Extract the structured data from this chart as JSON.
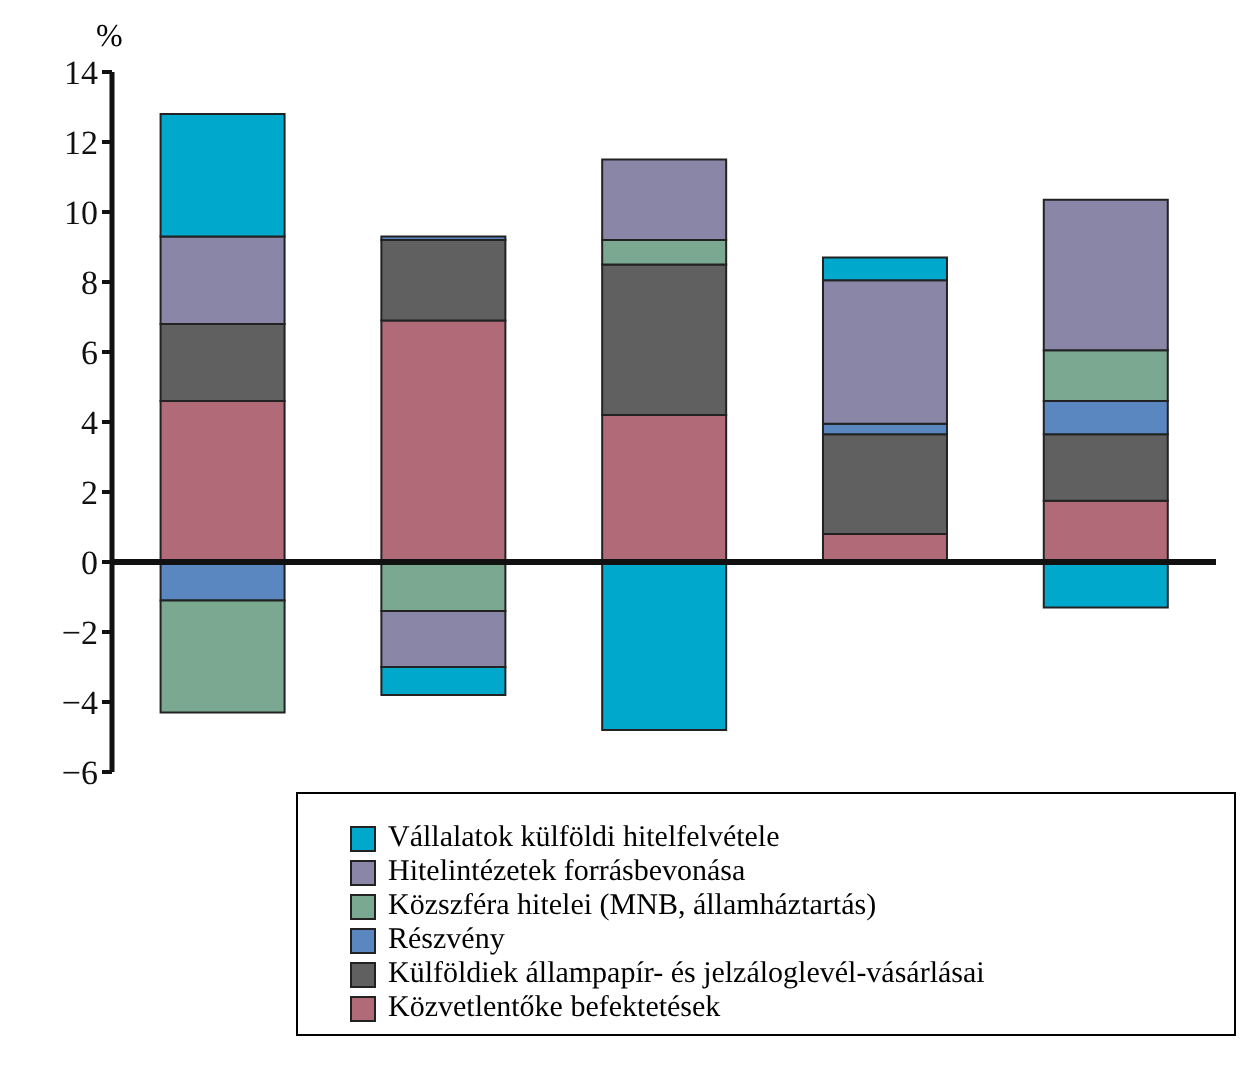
{
  "chart_data": {
    "type": "bar",
    "stacked": true,
    "ylabel": "%",
    "categories": [
      null,
      null,
      null,
      null,
      null
    ],
    "ylim": [
      -6,
      14
    ],
    "yticks": [
      {
        "value": -6,
        "label": "−6"
      },
      {
        "value": -4,
        "label": "−4"
      },
      {
        "value": -2,
        "label": "−2"
      },
      0,
      2,
      4,
      6,
      8,
      10,
      12,
      14
    ],
    "legend": "bottom",
    "series": [
      {
        "name": "Közvetlentőke befektetések",
        "color": "#b06a78",
        "values": [
          4.6,
          6.9,
          4.2,
          0.8,
          1.75
        ]
      },
      {
        "name": "Külföldiek állampapír- és jelzáloglevél-vásárlásai",
        "color": "#606060",
        "values": [
          2.2,
          2.3,
          4.3,
          2.85,
          1.9
        ]
      },
      {
        "name": "Részvény",
        "color": "#5b87c0",
        "values": [
          -1.1,
          0.1,
          null,
          0.3,
          0.95
        ]
      },
      {
        "name": "Közszféra hitelei (MNB, államháztartás)",
        "color": "#7aa890",
        "values": [
          -3.2,
          -1.4,
          0.7,
          null,
          1.45
        ]
      },
      {
        "name": "Hitelintézetek forrásbevonása",
        "color": "#8a86a8",
        "values": [
          2.5,
          -1.6,
          2.3,
          4.1,
          4.3
        ]
      },
      {
        "name": "Vállalatok külföldi hitelfelvétele",
        "color": "#00a8cc",
        "values": [
          3.5,
          -0.8,
          -4.8,
          0.65,
          -1.3
        ]
      }
    ]
  }
}
